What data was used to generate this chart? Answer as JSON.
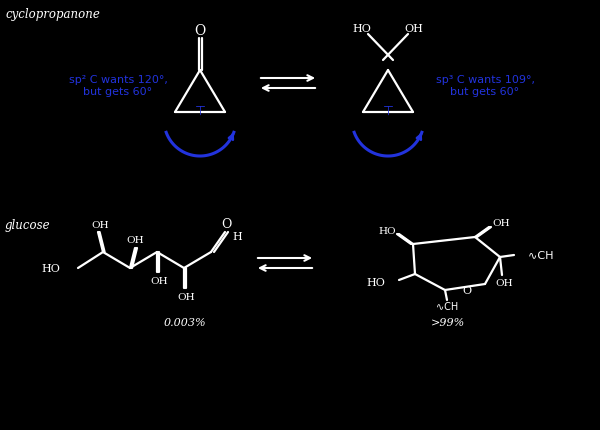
{
  "bg": "#000000",
  "fg": "#ffffff",
  "blue": "#2233dd",
  "title1": "cyclopropanone",
  "title2": "glucose",
  "sp2": "sp² C wants 120°,\nbut gets 60°",
  "sp3": "sp³ C wants 109°,\nbut gets 60°",
  "pct_left": "0.003%",
  "pct_right": ">99%"
}
